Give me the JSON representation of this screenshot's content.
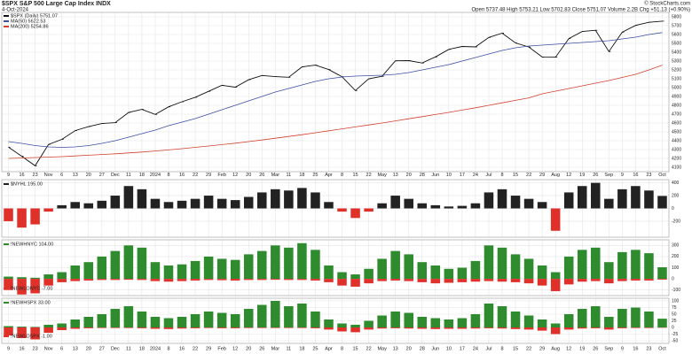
{
  "chart_data": [
    {
      "type": "line",
      "title": "$SPX S&P 500 Large Cap Index INDX",
      "date": "4-Oct-2024",
      "quote": "Open 5737.48  High 5753.21  Low 5702.83  Close 5751.07  Volume 2.2B  Chg +51.13 (+0.90%)",
      "watermark": "© StockCharts.com",
      "categories": [
        "9",
        "16",
        "23",
        "Nov",
        "6",
        "13",
        "20",
        "27",
        "Dec",
        "11",
        "18",
        "2024",
        "8",
        "16",
        "22",
        "29",
        "Feb",
        "12",
        "20",
        "26",
        "Mar",
        "11",
        "18",
        "25",
        "Apr",
        "8",
        "15",
        "22",
        "May",
        "13",
        "20",
        "28",
        "Jun",
        "10",
        "17",
        "24",
        "Jul",
        "8",
        "15",
        "22",
        "29",
        "Aug",
        "12",
        "19",
        "26",
        "Sep",
        "9",
        "16",
        "23",
        "Oct"
      ],
      "ylim": [
        4050,
        5850
      ],
      "yticks": [
        4100,
        4200,
        4300,
        4400,
        4500,
        4600,
        4700,
        4800,
        4900,
        5000,
        5100,
        5200,
        5300,
        5400,
        5500,
        5600,
        5700,
        5800
      ],
      "grid": true,
      "series": [
        {
          "name": "$SPX (Daily) 5751.07",
          "color": "#111111",
          "values": [
            4327,
            4224,
            4117,
            4358,
            4415,
            4514,
            4559,
            4594,
            4604,
            4719,
            4754,
            4697,
            4783,
            4840,
            4891,
            4958,
            5026,
            5005,
            5089,
            5137,
            5124,
            5117,
            5234,
            5254,
            5204,
            5123,
            4967,
            5100,
            5128,
            5303,
            5305,
            5278,
            5347,
            5432,
            5465,
            5460,
            5567,
            5615,
            5505,
            5459,
            5346,
            5344,
            5554,
            5634,
            5648,
            5408,
            5626,
            5703,
            5738,
            5751
          ]
        },
        {
          "name": "MA(50) 5622.53",
          "color": "#3b4ea3",
          "values": [
            4390,
            4370,
            4345,
            4330,
            4325,
            4330,
            4345,
            4370,
            4400,
            4440,
            4480,
            4520,
            4570,
            4610,
            4650,
            4700,
            4750,
            4800,
            4850,
            4900,
            4950,
            4990,
            5030,
            5070,
            5100,
            5120,
            5130,
            5135,
            5140,
            5150,
            5170,
            5200,
            5230,
            5260,
            5300,
            5340,
            5380,
            5420,
            5450,
            5470,
            5480,
            5490,
            5500,
            5510,
            5520,
            5530,
            5550,
            5570,
            5600,
            5622
          ]
        },
        {
          "name": "MA(200) 5254.86",
          "color": "#d2402e",
          "values": [
            4200,
            4205,
            4210,
            4215,
            4220,
            4228,
            4236,
            4244,
            4252,
            4262,
            4272,
            4284,
            4296,
            4310,
            4325,
            4340,
            4356,
            4372,
            4390,
            4408,
            4428,
            4448,
            4468,
            4490,
            4512,
            4534,
            4556,
            4578,
            4600,
            4624,
            4648,
            4672,
            4696,
            4720,
            4746,
            4772,
            4800,
            4828,
            4856,
            4884,
            4930,
            4960,
            4990,
            5020,
            5050,
            5080,
            5115,
            5150,
            5200,
            5254
          ]
        }
      ]
    },
    {
      "type": "signbar",
      "ylim": [
        -450,
        450
      ],
      "yticks": [
        -200,
        0,
        200,
        400
      ],
      "series": [
        {
          "name": "$NYHL 195.00",
          "color": "#222222",
          "negative_color": "#e0302a",
          "values": [
            -200,
            -300,
            -250,
            -50,
            50,
            100,
            80,
            120,
            200,
            350,
            300,
            150,
            100,
            120,
            150,
            200,
            150,
            130,
            180,
            250,
            300,
            280,
            320,
            250,
            100,
            -50,
            -150,
            -50,
            80,
            200,
            150,
            80,
            50,
            30,
            40,
            80,
            250,
            300,
            200,
            150,
            100,
            -350,
            250,
            350,
            400,
            150,
            300,
            350,
            280,
            195
          ]
        }
      ]
    },
    {
      "type": "bar",
      "ylim": [
        -150,
        350
      ],
      "yticks": [
        -100,
        0,
        100,
        200,
        300
      ],
      "series": [
        {
          "name": "!NEWHNYC 104.00",
          "color": "#2e8b2e",
          "values": [
            20,
            15,
            10,
            40,
            60,
            120,
            150,
            200,
            250,
            300,
            280,
            150,
            120,
            130,
            160,
            200,
            180,
            170,
            220,
            250,
            300,
            280,
            320,
            260,
            120,
            60,
            40,
            90,
            180,
            250,
            220,
            150,
            120,
            90,
            100,
            160,
            300,
            280,
            220,
            180,
            120,
            60,
            200,
            260,
            280,
            150,
            240,
            260,
            230,
            104
          ]
        },
        {
          "name": "!NEWLONYC -7.00",
          "color": "#e0302a",
          "values": [
            -100,
            -140,
            -130,
            -60,
            -30,
            -20,
            -15,
            -10,
            -10,
            -8,
            -10,
            -20,
            -25,
            -20,
            -15,
            -10,
            -12,
            -15,
            -10,
            -10,
            -8,
            -10,
            -10,
            -15,
            -30,
            -60,
            -70,
            -40,
            -20,
            -15,
            -20,
            -30,
            -40,
            -35,
            -30,
            -25,
            -20,
            -25,
            -30,
            -40,
            -60,
            -110,
            -50,
            -25,
            -20,
            -40,
            -20,
            -15,
            -15,
            -7
          ]
        }
      ]
    },
    {
      "type": "bar",
      "ylim": [
        -60,
        110
      ],
      "yticks": [
        -50,
        -25,
        0,
        25,
        50,
        75,
        100
      ],
      "series": [
        {
          "name": "!NEWHSPX 33.00",
          "color": "#2e8b2e",
          "values": [
            5,
            3,
            2,
            10,
            15,
            30,
            40,
            50,
            70,
            80,
            60,
            40,
            35,
            40,
            50,
            60,
            55,
            50,
            70,
            85,
            100,
            80,
            90,
            60,
            30,
            15,
            10,
            25,
            45,
            60,
            55,
            40,
            35,
            30,
            35,
            50,
            90,
            80,
            60,
            45,
            30,
            15,
            50,
            70,
            80,
            40,
            70,
            75,
            60,
            33
          ]
        },
        {
          "name": "!NEWLOSPX -1.00",
          "color": "#e0302a",
          "values": [
            -30,
            -40,
            -45,
            -20,
            -10,
            -5,
            -3,
            -2,
            -2,
            -2,
            -3,
            -5,
            -6,
            -4,
            -3,
            -2,
            -3,
            -3,
            -2,
            -2,
            -2,
            -2,
            -2,
            -3,
            -8,
            -15,
            -18,
            -8,
            -4,
            -3,
            -4,
            -5,
            -6,
            -5,
            -5,
            -4,
            -3,
            -4,
            -6,
            -8,
            -12,
            -25,
            -8,
            -4,
            -3,
            -8,
            -3,
            -2,
            -2,
            -1
          ]
        }
      ]
    }
  ]
}
